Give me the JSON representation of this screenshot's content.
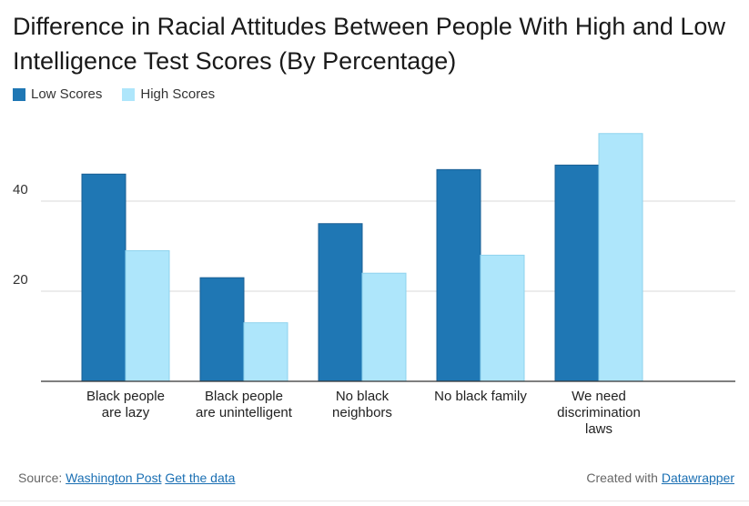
{
  "chart_data": {
    "type": "bar",
    "title": "Difference in Racial Attitudes Between People With High and Low Intelligence Test Scores (By Percentage)",
    "categories": [
      [
        "Black people",
        "are lazy"
      ],
      [
        "Black people",
        "are unintelligent"
      ],
      [
        "No black",
        "neighbors"
      ],
      [
        "No black family"
      ],
      [
        "We need",
        "discrimination",
        "laws"
      ]
    ],
    "series": [
      {
        "name": "Low Scores",
        "color": "#1f77b4",
        "values": [
          46,
          23,
          35,
          47,
          48
        ]
      },
      {
        "name": "High Scores",
        "color": "#aee6fb",
        "values": [
          29,
          13,
          24,
          28,
          55
        ]
      }
    ],
    "yticks": [
      20,
      40
    ],
    "ylim": [
      0,
      60
    ],
    "grid": true,
    "legend_position": "top-left"
  },
  "footer": {
    "source_prefix": "Source:",
    "source_link": "Washington Post",
    "data_link": "Get the data",
    "created_prefix": "Created with",
    "created_link": "Datawrapper"
  }
}
